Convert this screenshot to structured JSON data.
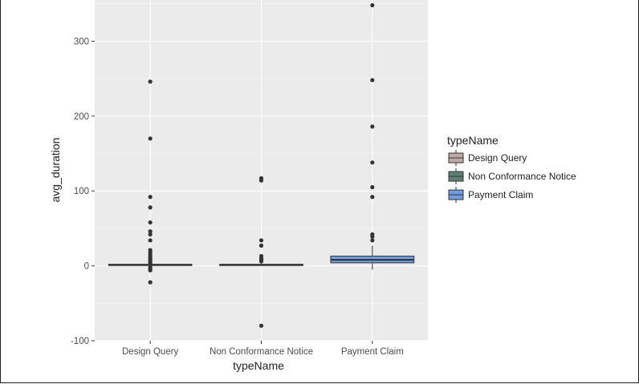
{
  "chart_data": {
    "type": "box",
    "xlabel": "typeName",
    "ylabel": "avg_duration",
    "ylim": [
      -100,
      355
    ],
    "yticks": [
      -100,
      0,
      100,
      200,
      300
    ],
    "grid": true,
    "legend": {
      "title": "typeName",
      "position": "right"
    },
    "categories": [
      "Design Query",
      "Non Conformance Notice",
      "Payment Claim"
    ],
    "colors": {
      "Design Query": "#bfaba3",
      "Non Conformance Notice": "#5f7f74",
      "Payment Claim": "#6f9ce0"
    },
    "boxes": [
      {
        "name": "Design Query",
        "q1": 1,
        "median": 1.5,
        "q3": 2,
        "whisker_low": 0.5,
        "whisker_high": 3,
        "outliers": [
          246,
          170,
          92,
          78,
          58,
          46,
          42,
          34,
          21,
          18,
          15,
          12,
          10,
          8,
          6,
          4,
          -2,
          -4,
          -6,
          -22
        ]
      },
      {
        "name": "Non Conformance Notice",
        "q1": 1,
        "median": 1.5,
        "q3": 2,
        "whisker_low": 0.5,
        "whisker_high": 3,
        "outliers": [
          117,
          114,
          34,
          27,
          13,
          10,
          8,
          6,
          -80
        ]
      },
      {
        "name": "Payment Claim",
        "q1": 4,
        "median": 8,
        "q3": 13,
        "whisker_low": -5,
        "whisker_high": 27,
        "outliers": [
          348,
          248,
          186,
          138,
          105,
          92,
          42,
          39,
          34
        ]
      }
    ]
  }
}
